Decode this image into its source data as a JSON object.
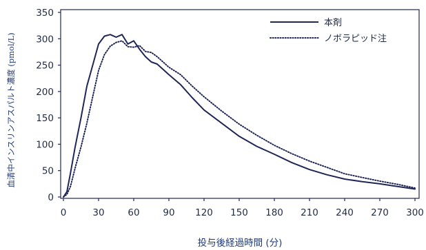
{
  "chart_data": {
    "type": "line",
    "xlabel": "投与後経過時間 (分)",
    "ylabel": "血清中インスリンアスパルト濃度 (pmol/L)",
    "xlim": [
      0,
      300
    ],
    "ylim": [
      0,
      350
    ],
    "x_ticks": [
      "0",
      "30",
      "60",
      "90",
      "120",
      "150",
      "180",
      "210",
      "240",
      "270",
      "300"
    ],
    "y_ticks": [
      "0",
      "50",
      "100",
      "150",
      "200",
      "250",
      "300",
      "350"
    ],
    "grid": false,
    "legend_position": "top-right",
    "series": [
      {
        "name": "本剤",
        "style": "solid",
        "color": "#1f2656",
        "points": [
          [
            0,
            0
          ],
          [
            3,
            10
          ],
          [
            6,
            45
          ],
          [
            10,
            95
          ],
          [
            15,
            150
          ],
          [
            20,
            210
          ],
          [
            25,
            250
          ],
          [
            30,
            290
          ],
          [
            35,
            305
          ],
          [
            40,
            308
          ],
          [
            45,
            303
          ],
          [
            50,
            308
          ],
          [
            55,
            290
          ],
          [
            60,
            296
          ],
          [
            65,
            280
          ],
          [
            70,
            266
          ],
          [
            75,
            256
          ],
          [
            80,
            252
          ],
          [
            90,
            232
          ],
          [
            100,
            213
          ],
          [
            110,
            188
          ],
          [
            120,
            165
          ],
          [
            135,
            140
          ],
          [
            150,
            115
          ],
          [
            165,
            96
          ],
          [
            180,
            81
          ],
          [
            195,
            65
          ],
          [
            210,
            52
          ],
          [
            225,
            42
          ],
          [
            240,
            34
          ],
          [
            255,
            29
          ],
          [
            270,
            25
          ],
          [
            285,
            20
          ],
          [
            300,
            15
          ]
        ]
      },
      {
        "name": "ノボラピッド注",
        "style": "dotted",
        "color": "#1f2656",
        "points": [
          [
            0,
            0
          ],
          [
            3,
            5
          ],
          [
            6,
            20
          ],
          [
            10,
            55
          ],
          [
            15,
            95
          ],
          [
            20,
            140
          ],
          [
            25,
            190
          ],
          [
            30,
            240
          ],
          [
            35,
            270
          ],
          [
            40,
            286
          ],
          [
            45,
            293
          ],
          [
            50,
            296
          ],
          [
            55,
            285
          ],
          [
            60,
            284
          ],
          [
            65,
            287
          ],
          [
            70,
            276
          ],
          [
            75,
            274
          ],
          [
            80,
            266
          ],
          [
            90,
            246
          ],
          [
            100,
            232
          ],
          [
            110,
            210
          ],
          [
            120,
            190
          ],
          [
            135,
            163
          ],
          [
            150,
            138
          ],
          [
            165,
            117
          ],
          [
            180,
            98
          ],
          [
            195,
            82
          ],
          [
            210,
            68
          ],
          [
            225,
            56
          ],
          [
            240,
            44
          ],
          [
            255,
            37
          ],
          [
            270,
            30
          ],
          [
            285,
            24
          ],
          [
            300,
            17
          ]
        ]
      }
    ]
  }
}
